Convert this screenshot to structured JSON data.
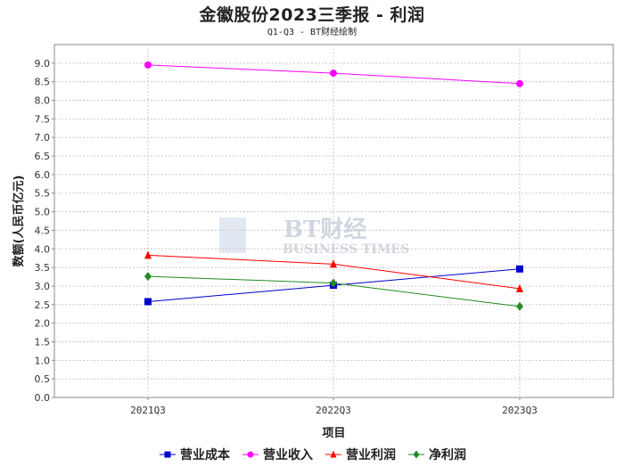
{
  "chart_data": {
    "type": "line",
    "title": "金徽股份2023三季报 - 利润",
    "subtitle": "Q1-Q3 - BT财经绘制",
    "xlabel": "项目",
    "ylabel": "数额(人民币亿元)",
    "categories": [
      "2021Q3",
      "2022Q3",
      "2023Q3"
    ],
    "ylim": [
      0,
      9.5
    ],
    "yticks": [
      "0.0",
      "0.5",
      "1.0",
      "1.5",
      "2.0",
      "2.5",
      "3.0",
      "3.5",
      "4.0",
      "4.5",
      "5.0",
      "5.5",
      "6.0",
      "6.5",
      "7.0",
      "7.5",
      "8.0",
      "8.5",
      "9.0"
    ],
    "grid": true,
    "legend_position": "bottom",
    "watermark": "BT财经 BUSINESS TIMES",
    "series": [
      {
        "name": "营业成本",
        "values": [
          2.58,
          3.02,
          3.46
        ],
        "color": "#0000cc",
        "marker": "square"
      },
      {
        "name": "营业收入",
        "values": [
          8.95,
          8.73,
          8.45
        ],
        "color": "#ff00ff",
        "marker": "circle"
      },
      {
        "name": "营业利润",
        "values": [
          3.83,
          3.59,
          2.93
        ],
        "color": "#ff0000",
        "marker": "triangle"
      },
      {
        "name": "净利润",
        "values": [
          3.26,
          3.08,
          2.45
        ],
        "color": "#228b22",
        "marker": "diamond"
      }
    ]
  }
}
